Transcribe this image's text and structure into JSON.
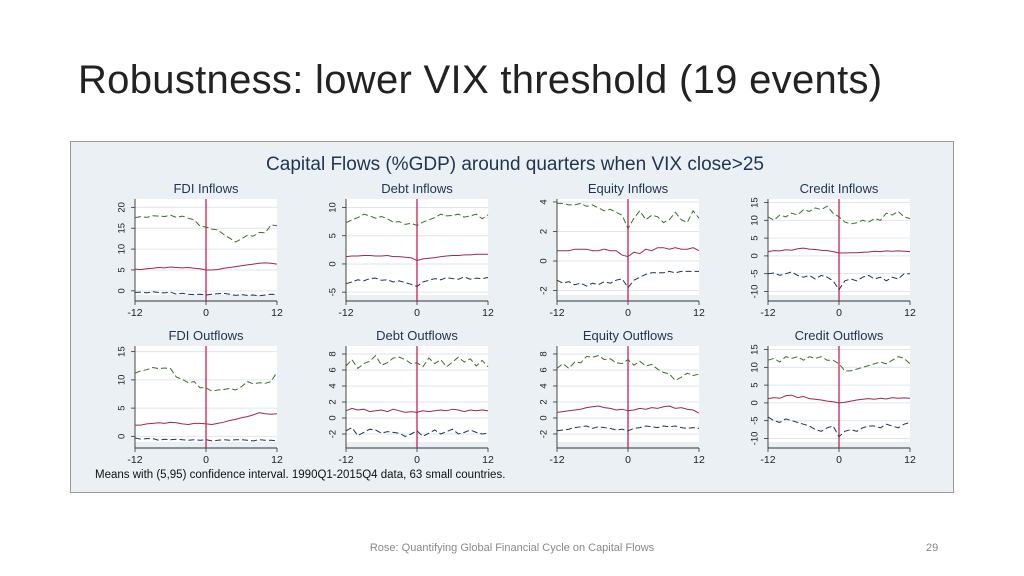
{
  "slide": {
    "title": "Robustness: lower VIX threshold (19 events)",
    "footer": "Rose: Quantifying Global Financial Cycle on Capital Flows",
    "page_number": "29"
  },
  "figure": {
    "title": "Capital Flows (%GDP) around quarters when VIX close>25",
    "note": "Means with (5,95) confidence interval.  1990Q1-2015Q4 data, 63 small countries."
  },
  "colors": {
    "mean_line": "#9c2a45",
    "upper_band": "#3d6b2e",
    "lower_band": "#1f3450",
    "event_line": "#cc1f55",
    "plot_bg": "#ffffff",
    "figure_bg": "#eaf0f3",
    "grid": "#dfe6ea"
  },
  "chart_data": [
    {
      "type": "line",
      "title": "FDI Inflows",
      "x": [
        -12,
        -11,
        -10,
        -9,
        -8,
        -7,
        -6,
        -5,
        -4,
        -3,
        -2,
        -1,
        0,
        1,
        2,
        3,
        4,
        5,
        6,
        7,
        8,
        9,
        10,
        11,
        12
      ],
      "xticks": [
        -12,
        0,
        12
      ],
      "xlim": [
        -12,
        12
      ],
      "yticks": [
        0,
        5,
        10,
        15,
        20
      ],
      "ylim": [
        -1,
        22
      ],
      "series": [
        {
          "values": [
            17.5,
            17.8,
            17.6,
            18.0,
            17.9,
            17.8,
            18.1,
            17.6,
            17.9,
            17.4,
            17.0,
            15.5,
            15.3,
            14.8,
            14.6,
            13.5,
            12.6,
            11.7,
            12.5,
            13.3,
            13.1,
            14.0,
            13.9,
            15.8,
            15.6
          ]
        },
        {
          "values": [
            5.2,
            5.1,
            5.3,
            5.4,
            5.6,
            5.5,
            5.7,
            5.6,
            5.5,
            5.6,
            5.4,
            5.3,
            5.0,
            5.0,
            5.1,
            5.4,
            5.6,
            5.8,
            6.0,
            6.2,
            6.4,
            6.6,
            6.7,
            6.6,
            6.4
          ]
        },
        {
          "values": [
            -0.4,
            -0.3,
            -0.5,
            -0.2,
            -0.4,
            -0.5,
            -0.3,
            -0.8,
            -0.6,
            -0.8,
            -0.9,
            -0.8,
            -1.0,
            -0.8,
            -0.7,
            -0.6,
            -0.8,
            -1.1,
            -0.9,
            -1.1,
            -1.0,
            -1.2,
            -1.0,
            -0.8,
            -0.9
          ]
        }
      ]
    },
    {
      "type": "line",
      "title": "Debt Inflows",
      "x": [
        -12,
        -11,
        -10,
        -9,
        -8,
        -7,
        -6,
        -5,
        -4,
        -3,
        -2,
        -1,
        0,
        1,
        2,
        3,
        4,
        5,
        6,
        7,
        8,
        9,
        10,
        11,
        12
      ],
      "xticks": [
        -12,
        0,
        12
      ],
      "xlim": [
        -12,
        12
      ],
      "yticks": [
        -5,
        0,
        5,
        10
      ],
      "ylim": [
        -5.5,
        11.5
      ],
      "series": [
        {
          "values": [
            7.3,
            7.8,
            8.2,
            8.8,
            8.5,
            8.1,
            8.4,
            8.0,
            7.4,
            7.5,
            7.0,
            7.2,
            6.8,
            7.4,
            7.8,
            8.2,
            8.8,
            8.5,
            8.6,
            8.8,
            8.3,
            8.5,
            8.8,
            8.0,
            8.7
          ]
        },
        {
          "values": [
            1.3,
            1.4,
            1.4,
            1.5,
            1.5,
            1.4,
            1.4,
            1.5,
            1.3,
            1.3,
            1.2,
            1.1,
            0.6,
            0.9,
            1.0,
            1.1,
            1.3,
            1.4,
            1.5,
            1.5,
            1.6,
            1.6,
            1.7,
            1.7,
            1.7
          ]
        },
        {
          "values": [
            -3.5,
            -3.2,
            -2.8,
            -3.0,
            -2.6,
            -2.5,
            -2.9,
            -2.8,
            -3.2,
            -3.0,
            -3.3,
            -3.6,
            -4.0,
            -3.2,
            -2.9,
            -2.6,
            -2.8,
            -2.4,
            -2.6,
            -2.7,
            -2.3,
            -2.7,
            -2.5,
            -2.6,
            -2.4
          ]
        }
      ]
    },
    {
      "type": "line",
      "title": "Equity Inflows",
      "x": [
        -12,
        -11,
        -10,
        -9,
        -8,
        -7,
        -6,
        -5,
        -4,
        -3,
        -2,
        -1,
        0,
        1,
        2,
        3,
        4,
        5,
        6,
        7,
        8,
        9,
        10,
        11,
        12
      ],
      "xticks": [
        -12,
        0,
        12
      ],
      "xlim": [
        -12,
        12
      ],
      "yticks": [
        -2,
        0,
        2,
        4
      ],
      "ylim": [
        -2.3,
        4.2
      ],
      "series": [
        {
          "values": [
            3.9,
            3.9,
            3.8,
            3.8,
            3.9,
            3.7,
            3.8,
            3.6,
            3.4,
            3.5,
            3.3,
            3.1,
            2.2,
            2.9,
            3.4,
            2.8,
            3.1,
            3.0,
            2.6,
            2.8,
            3.3,
            2.8,
            2.6,
            3.4,
            2.9
          ]
        },
        {
          "values": [
            0.7,
            0.7,
            0.7,
            0.8,
            0.8,
            0.8,
            0.7,
            0.7,
            0.8,
            0.7,
            0.7,
            0.4,
            0.3,
            0.6,
            0.5,
            0.8,
            0.7,
            0.9,
            0.9,
            0.8,
            0.9,
            0.8,
            0.8,
            0.9,
            0.7
          ]
        },
        {
          "values": [
            -1.3,
            -1.5,
            -1.4,
            -1.6,
            -1.5,
            -1.7,
            -1.5,
            -1.6,
            -1.4,
            -1.5,
            -1.3,
            -1.2,
            -1.8,
            -1.3,
            -1.1,
            -0.9,
            -0.8,
            -0.8,
            -0.8,
            -0.7,
            -0.8,
            -0.7,
            -0.7,
            -0.7,
            -0.7
          ]
        }
      ]
    },
    {
      "type": "line",
      "title": "Credit Inflows",
      "x": [
        -12,
        -11,
        -10,
        -9,
        -8,
        -7,
        -6,
        -5,
        -4,
        -3,
        -2,
        -1,
        0,
        1,
        2,
        3,
        4,
        5,
        6,
        7,
        8,
        9,
        10,
        11,
        12
      ],
      "xticks": [
        -12,
        0,
        12
      ],
      "xlim": [
        -12,
        12
      ],
      "yticks": [
        -10,
        -5,
        0,
        5,
        10,
        15
      ],
      "ylim": [
        -11,
        16
      ],
      "series": [
        {
          "values": [
            11,
            10,
            11.5,
            11,
            12,
            11.5,
            13,
            12.5,
            13.5,
            13,
            14,
            12,
            11,
            9.5,
            9,
            9.3,
            10,
            9.5,
            10.5,
            10,
            12,
            11.5,
            12.5,
            11,
            10.5
          ]
        },
        {
          "values": [
            1.2,
            1.5,
            1.4,
            1.7,
            1.6,
            2.0,
            2.2,
            1.9,
            1.8,
            1.6,
            1.5,
            1.2,
            0.8,
            0.8,
            0.9,
            0.9,
            1.0,
            1.1,
            1.3,
            1.2,
            1.4,
            1.3,
            1.4,
            1.3,
            1.2
          ]
        },
        {
          "values": [
            -5,
            -4.8,
            -5.5,
            -5,
            -4.5,
            -5.5,
            -6,
            -5.5,
            -6.5,
            -5.5,
            -6,
            -7,
            -9.5,
            -7,
            -6.5,
            -7,
            -6,
            -5.5,
            -6.5,
            -6,
            -7,
            -6,
            -6.5,
            -5,
            -5
          ]
        }
      ]
    },
    {
      "type": "line",
      "title": "FDI Outflows",
      "x": [
        -12,
        -11,
        -10,
        -9,
        -8,
        -7,
        -6,
        -5,
        -4,
        -3,
        -2,
        -1,
        0,
        1,
        2,
        3,
        4,
        5,
        6,
        7,
        8,
        9,
        10,
        11,
        12
      ],
      "xticks": [
        -12,
        0,
        12
      ],
      "xlim": [
        -12,
        12
      ],
      "yticks": [
        0,
        5,
        10,
        15
      ],
      "ylim": [
        -1,
        16
      ],
      "series": [
        {
          "values": [
            11.2,
            11.6,
            11.8,
            12.2,
            12.0,
            12.1,
            12.0,
            10.5,
            10.1,
            9.5,
            9.7,
            8.6,
            8.6,
            8.0,
            8.2,
            8.3,
            8.5,
            8.2,
            8.8,
            9.7,
            9.3,
            9.5,
            9.4,
            9.7,
            11.4
          ]
        },
        {
          "values": [
            2.0,
            2.0,
            2.2,
            2.3,
            2.4,
            2.3,
            2.5,
            2.4,
            2.2,
            2.1,
            2.3,
            2.3,
            2.2,
            2.1,
            2.3,
            2.5,
            2.8,
            3.0,
            3.3,
            3.5,
            3.8,
            4.2,
            4.0,
            3.9,
            4.0
          ]
        },
        {
          "values": [
            -0.3,
            -0.5,
            -0.4,
            -0.4,
            -0.7,
            -0.5,
            -0.6,
            -0.5,
            -0.6,
            -0.7,
            -0.6,
            -0.7,
            -0.6,
            -0.8,
            -0.7,
            -0.6,
            -0.7,
            -0.6,
            -0.6,
            -0.7,
            -0.8,
            -0.6,
            -0.7,
            -0.7,
            -0.8
          ]
        }
      ]
    },
    {
      "type": "line",
      "title": "Debt Outflows",
      "x": [
        -12,
        -11,
        -10,
        -9,
        -8,
        -7,
        -6,
        -5,
        -4,
        -3,
        -2,
        -1,
        0,
        1,
        2,
        3,
        4,
        5,
        6,
        7,
        8,
        9,
        10,
        11,
        12
      ],
      "xticks": [
        -12,
        0,
        12
      ],
      "xlim": [
        -12,
        12
      ],
      "yticks": [
        -2,
        0,
        2,
        4,
        6,
        8
      ],
      "ylim": [
        -3,
        9
      ],
      "series": [
        {
          "values": [
            6.5,
            7.3,
            6.2,
            6.8,
            7.1,
            7.8,
            6.6,
            6.9,
            7.5,
            7.6,
            7.3,
            6.8,
            6.9,
            6.4,
            7.5,
            6.8,
            7.3,
            6.4,
            7.0,
            7.6,
            7.0,
            7.4,
            6.5,
            7.2,
            6.4
          ]
        },
        {
          "values": [
            0.9,
            1.2,
            1.0,
            1.1,
            0.8,
            0.9,
            1.0,
            0.8,
            1.1,
            0.9,
            0.7,
            0.8,
            0.7,
            0.9,
            0.8,
            0.9,
            1.0,
            0.9,
            1.1,
            1.0,
            0.8,
            1.0,
            0.9,
            1.0,
            0.9
          ]
        },
        {
          "values": [
            -1.6,
            -1.2,
            -2.2,
            -1.8,
            -1.4,
            -1.5,
            -1.9,
            -1.7,
            -1.8,
            -1.9,
            -2.3,
            -2.0,
            -1.6,
            -2.3,
            -1.9,
            -1.5,
            -2.0,
            -1.7,
            -1.4,
            -2.0,
            -1.8,
            -1.5,
            -1.8,
            -2.0,
            -1.9
          ]
        }
      ]
    },
    {
      "type": "line",
      "title": "Equity Outflows",
      "x": [
        -12,
        -11,
        -10,
        -9,
        -8,
        -7,
        -6,
        -5,
        -4,
        -3,
        -2,
        -1,
        0,
        1,
        2,
        3,
        4,
        5,
        6,
        7,
        8,
        9,
        10,
        11,
        12
      ],
      "xticks": [
        -12,
        0,
        12
      ],
      "xlim": [
        -12,
        12
      ],
      "yticks": [
        -2,
        0,
        2,
        4,
        6,
        8
      ],
      "ylim": [
        -3,
        9
      ],
      "series": [
        {
          "values": [
            6.2,
            6.8,
            6.2,
            7.0,
            6.9,
            7.7,
            7.6,
            7.8,
            7.3,
            7.4,
            6.9,
            6.8,
            7.3,
            6.6,
            7.1,
            6.5,
            6.7,
            6.1,
            5.7,
            5.5,
            4.7,
            5.1,
            5.6,
            5.3,
            5.5
          ]
        },
        {
          "values": [
            0.7,
            0.8,
            0.9,
            1.0,
            1.1,
            1.3,
            1.4,
            1.5,
            1.3,
            1.2,
            1.0,
            1.1,
            0.9,
            1.0,
            1.2,
            1.1,
            1.3,
            1.2,
            1.4,
            1.5,
            1.2,
            1.3,
            1.1,
            1.0,
            0.6
          ]
        },
        {
          "values": [
            -1.6,
            -1.5,
            -1.4,
            -1.2,
            -1.1,
            -1.0,
            -1.3,
            -1.1,
            -1.2,
            -1.3,
            -1.5,
            -1.4,
            -1.6,
            -1.3,
            -1.2,
            -1.0,
            -1.1,
            -1.2,
            -1.0,
            -1.1,
            -1.0,
            -1.2,
            -1.3,
            -1.2,
            -1.3
          ]
        }
      ]
    },
    {
      "type": "line",
      "title": "Credit Outflows",
      "x": [
        -12,
        -11,
        -10,
        -9,
        -8,
        -7,
        -6,
        -5,
        -4,
        -3,
        -2,
        -1,
        0,
        1,
        2,
        3,
        4,
        5,
        6,
        7,
        8,
        9,
        10,
        11,
        12
      ],
      "xticks": [
        -12,
        0,
        12
      ],
      "xlim": [
        -12,
        12
      ],
      "yticks": [
        -10,
        -5,
        0,
        5,
        10,
        15
      ],
      "ylim": [
        -11,
        16
      ],
      "series": [
        {
          "values": [
            12,
            12.5,
            11.5,
            13,
            12.5,
            13,
            12,
            13,
            12.5,
            13,
            12,
            12,
            11,
            9,
            9,
            9.5,
            10,
            10.5,
            11,
            11.5,
            11,
            12,
            13,
            12.5,
            11
          ]
        },
        {
          "values": [
            1.2,
            1.5,
            1.3,
            2,
            2.2,
            1.5,
            1.8,
            1.2,
            1,
            0.8,
            0.5,
            0.3,
            0,
            0.2,
            0.5,
            0.8,
            1,
            1.2,
            1,
            1.3,
            1.1,
            1.5,
            1.3,
            1.4,
            1.3
          ]
        },
        {
          "values": [
            -4,
            -5,
            -5.5,
            -4.5,
            -5,
            -5.5,
            -6,
            -6.5,
            -7.5,
            -8,
            -7,
            -6.5,
            -9.5,
            -8,
            -7.5,
            -8,
            -7,
            -6.5,
            -6.5,
            -7,
            -6,
            -6.5,
            -7,
            -6,
            -5.5
          ]
        }
      ]
    }
  ]
}
